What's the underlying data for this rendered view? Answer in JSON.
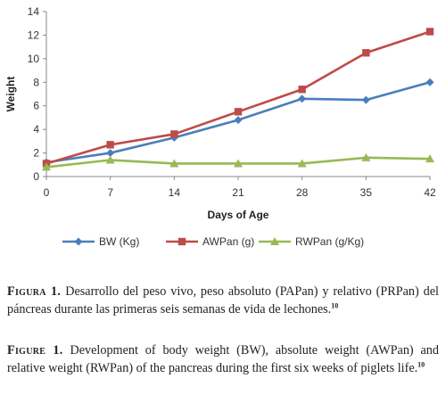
{
  "chart_data": {
    "type": "line",
    "x": [
      0,
      7,
      14,
      21,
      28,
      35,
      42
    ],
    "xlabel": "Days of Age",
    "ylabel": "Weight",
    "xlim": [
      0,
      42
    ],
    "ylim": [
      0,
      14
    ],
    "xticks": [
      "0",
      "7",
      "14",
      "21",
      "28",
      "35",
      "42"
    ],
    "yticks": [
      "0",
      "2",
      "4",
      "6",
      "8",
      "10",
      "12",
      "14"
    ],
    "grid": false,
    "legend_position": "bottom",
    "series": [
      {
        "name": "BW (Kg)",
        "values": [
          1.2,
          2.0,
          3.3,
          4.8,
          6.6,
          6.5,
          8.0
        ],
        "color": "#4a7ebb",
        "marker": "diamond"
      },
      {
        "name": "AWPan (g)",
        "values": [
          1.1,
          2.7,
          3.6,
          5.5,
          7.4,
          10.5,
          12.3
        ],
        "color": "#be4b48",
        "marker": "square"
      },
      {
        "name": "RWPan (g/Kg)",
        "values": [
          0.8,
          1.4,
          1.1,
          1.1,
          1.1,
          1.6,
          1.5
        ],
        "color": "#98b954",
        "marker": "triangle"
      }
    ]
  },
  "caption_es": {
    "lead": "Figura 1.",
    "text": " Desarrollo del peso vivo, peso absoluto (PAPan) y relativo (PRPan) del páncreas durante las primeras seis semanas de vida de lechones.",
    "ref": "10"
  },
  "caption_en": {
    "lead": "Figure 1.",
    "text": " Development of body weight (BW), absolute weight (AWPan) and relative weight (RWPan) of the pancreas during the first six weeks of piglets life.",
    "ref": "10"
  }
}
